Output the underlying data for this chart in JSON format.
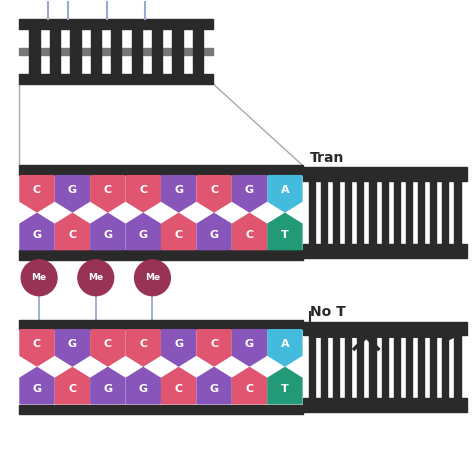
{
  "bg_color": "#ffffff",
  "dark": "#2a2a2a",
  "pink": "#e05570",
  "purple": "#8855bb",
  "cyan": "#44bbdd",
  "teal": "#229977",
  "dark_red": "#993355",
  "pin_line": "#99aacc",
  "pin_dot": "#cc2233",
  "zoom_line": "#aaaaaa",
  "seqT": [
    "C",
    "G",
    "C",
    "C",
    "G",
    "C",
    "G",
    "A"
  ],
  "seqB": [
    "G",
    "C",
    "G",
    "G",
    "C",
    "G",
    "C",
    "T"
  ],
  "colorsT": [
    "#e05570",
    "#8855bb",
    "#e05570",
    "#e05570",
    "#8855bb",
    "#e05570",
    "#8855bb",
    "#44bbdd"
  ],
  "colorsB": [
    "#8855bb",
    "#e05570",
    "#8855bb",
    "#8855bb",
    "#e05570",
    "#8855bb",
    "#e05570",
    "#229977"
  ],
  "label_top": "Tran",
  "label_bot": "No T"
}
